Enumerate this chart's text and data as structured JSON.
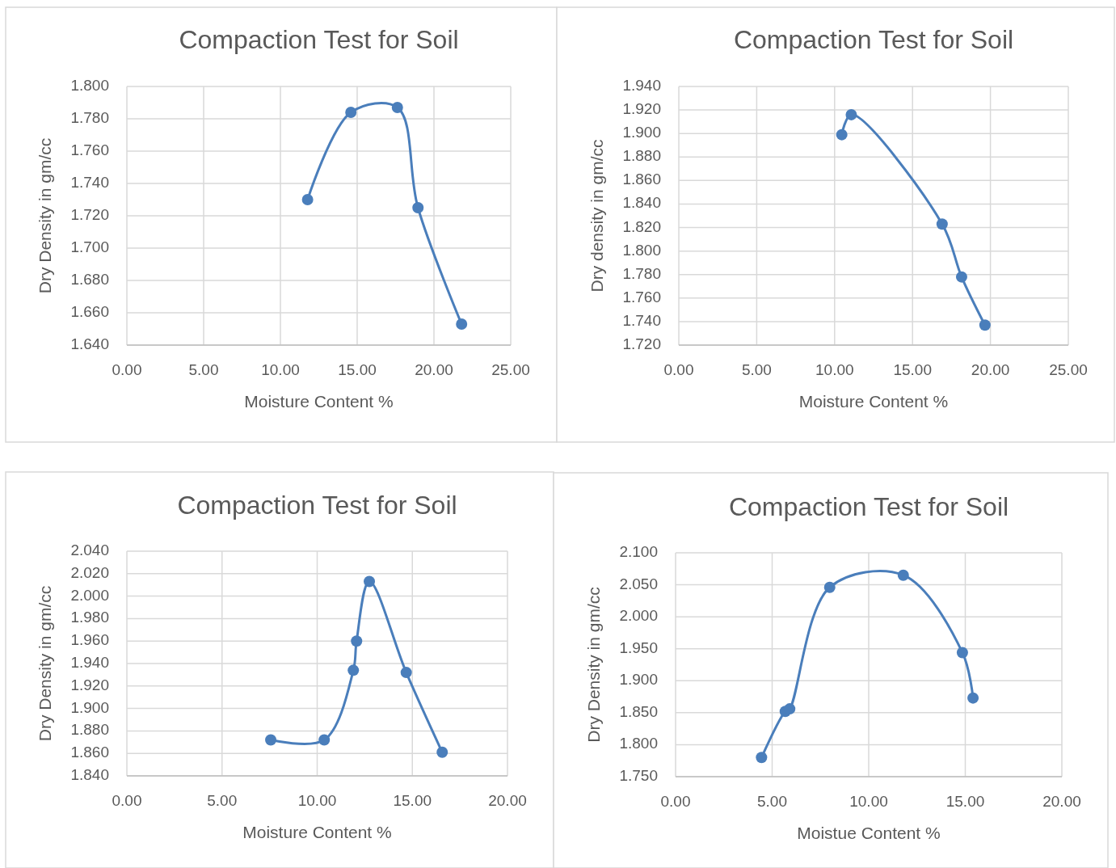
{
  "chart_data": [
    {
      "type": "line",
      "title": "Compaction Test for Soil",
      "xlabel": "Moisture Content %",
      "ylabel": "Dry Density in gm/cc",
      "xlim": [
        0,
        25
      ],
      "xticks": [
        {
          "value": 0,
          "label": "0.00"
        },
        {
          "value": 5,
          "label": "5.00"
        },
        {
          "value": 10,
          "label": "10.00"
        },
        {
          "value": 15,
          "label": "15.00"
        },
        {
          "value": 20,
          "label": "20.00"
        },
        {
          "value": 25,
          "label": "25.00"
        }
      ],
      "ylim": [
        1.64,
        1.8
      ],
      "yticks": [
        {
          "value": 1.64,
          "label": "1.640"
        },
        {
          "value": 1.66,
          "label": "1.660"
        },
        {
          "value": 1.68,
          "label": "1.680"
        },
        {
          "value": 1.7,
          "label": "1.700"
        },
        {
          "value": 1.72,
          "label": "1.720"
        },
        {
          "value": 1.74,
          "label": "1.740"
        },
        {
          "value": 1.76,
          "label": "1.760"
        },
        {
          "value": 1.78,
          "label": "1.780"
        },
        {
          "value": 1.8,
          "label": "1.800"
        }
      ],
      "grid": true,
      "marker": "circle",
      "line_style": "solid",
      "series": [
        {
          "color": "#4a7ebb",
          "x": [
            11.77,
            14.59,
            17.62,
            18.96,
            21.8
          ],
          "values": [
            1.73,
            1.784,
            1.787,
            1.725,
            1.653
          ]
        }
      ]
    },
    {
      "type": "line",
      "title": "Compaction Test for Soil",
      "xlabel": "Moisture Content %",
      "ylabel": "Dry density in gm/cc",
      "xlim": [
        0,
        25
      ],
      "xticks": [
        {
          "value": 0,
          "label": "0.00"
        },
        {
          "value": 5,
          "label": "5.00"
        },
        {
          "value": 10,
          "label": "10.00"
        },
        {
          "value": 15,
          "label": "15.00"
        },
        {
          "value": 20,
          "label": "20.00"
        },
        {
          "value": 25,
          "label": "25.00"
        }
      ],
      "ylim": [
        1.72,
        1.94
      ],
      "yticks": [
        {
          "value": 1.72,
          "label": "1.720"
        },
        {
          "value": 1.74,
          "label": "1.740"
        },
        {
          "value": 1.76,
          "label": "1.760"
        },
        {
          "value": 1.78,
          "label": "1.780"
        },
        {
          "value": 1.8,
          "label": "1.800"
        },
        {
          "value": 1.82,
          "label": "1.820"
        },
        {
          "value": 1.84,
          "label": "1.840"
        },
        {
          "value": 1.86,
          "label": "1.860"
        },
        {
          "value": 1.88,
          "label": "1.880"
        },
        {
          "value": 1.9,
          "label": "1.900"
        },
        {
          "value": 1.92,
          "label": "1.920"
        },
        {
          "value": 1.94,
          "label": "1.940"
        }
      ],
      "grid": true,
      "marker": "circle",
      "line_style": "solid",
      "series": [
        {
          "color": "#4a7ebb",
          "x": [
            10.46,
            11.07,
            16.9,
            18.15,
            19.65
          ],
          "values": [
            1.899,
            1.916,
            1.823,
            1.778,
            1.737
          ]
        }
      ]
    },
    {
      "type": "line",
      "title": "Compaction Test for Soil",
      "xlabel": "Moisture Content %",
      "ylabel": "Dry Density in gm/cc",
      "xlim": [
        0,
        20
      ],
      "xticks": [
        {
          "value": 0,
          "label": "0.00"
        },
        {
          "value": 5,
          "label": "5.00"
        },
        {
          "value": 10,
          "label": "10.00"
        },
        {
          "value": 15,
          "label": "15.00"
        },
        {
          "value": 20,
          "label": "20.00"
        }
      ],
      "ylim": [
        1.84,
        2.04
      ],
      "yticks": [
        {
          "value": 1.84,
          "label": "1.840"
        },
        {
          "value": 1.86,
          "label": "1.860"
        },
        {
          "value": 1.88,
          "label": "1.880"
        },
        {
          "value": 1.9,
          "label": "1.900"
        },
        {
          "value": 1.92,
          "label": "1.920"
        },
        {
          "value": 1.94,
          "label": "1.940"
        },
        {
          "value": 1.96,
          "label": "1.960"
        },
        {
          "value": 1.98,
          "label": "1.980"
        },
        {
          "value": 2.0,
          "label": "2.000"
        },
        {
          "value": 2.02,
          "label": "2.020"
        },
        {
          "value": 2.04,
          "label": "2.040"
        }
      ],
      "grid": true,
      "marker": "circle",
      "line_style": "solid",
      "series": [
        {
          "color": "#4a7ebb",
          "x": [
            7.56,
            10.37,
            11.9,
            12.07,
            12.74,
            14.68,
            16.57
          ],
          "values": [
            1.872,
            1.872,
            1.934,
            1.96,
            2.013,
            1.932,
            1.861
          ]
        }
      ]
    },
    {
      "type": "line",
      "title": "Compaction Test for Soil",
      "xlabel": "Moistue Content %",
      "ylabel": "Dry Density in gm/cc",
      "xlim": [
        0,
        20
      ],
      "xticks": [
        {
          "value": 0,
          "label": "0.00"
        },
        {
          "value": 5,
          "label": "5.00"
        },
        {
          "value": 10,
          "label": "10.00"
        },
        {
          "value": 15,
          "label": "15.00"
        },
        {
          "value": 20,
          "label": "20.00"
        }
      ],
      "ylim": [
        1.75,
        2.1
      ],
      "yticks": [
        {
          "value": 1.75,
          "label": "1.750"
        },
        {
          "value": 1.8,
          "label": "1.800"
        },
        {
          "value": 1.85,
          "label": "1.850"
        },
        {
          "value": 1.9,
          "label": "1.900"
        },
        {
          "value": 1.95,
          "label": "1.950"
        },
        {
          "value": 2.0,
          "label": "2.000"
        },
        {
          "value": 2.05,
          "label": "2.050"
        },
        {
          "value": 2.1,
          "label": "2.100"
        }
      ],
      "grid": true,
      "marker": "circle",
      "line_style": "solid",
      "series": [
        {
          "color": "#4a7ebb",
          "x": [
            4.45,
            5.68,
            5.91,
            7.98,
            11.79,
            14.85,
            15.4
          ],
          "values": [
            1.78,
            1.852,
            1.856,
            2.046,
            2.065,
            1.944,
            1.873
          ]
        }
      ]
    }
  ]
}
